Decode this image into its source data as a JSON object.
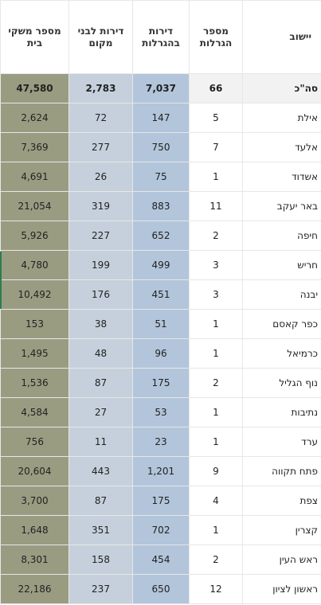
{
  "headers": {
    "settlement": "יישוב",
    "lotteries": "מספר הגרלות",
    "apartments": "דירות בהגרלות",
    "local_apartments": "דירות לבני מקום",
    "households": "מספר משקי בית"
  },
  "total": {
    "settlement": "סה\"כ",
    "lotteries": "66",
    "apartments": "7,037",
    "local_apartments": "2,783",
    "households": "47,580"
  },
  "rows": [
    {
      "settlement": "אילת",
      "lotteries": "5",
      "apartments": "147",
      "local_apartments": "72",
      "households": "2,624"
    },
    {
      "settlement": "אלעד",
      "lotteries": "7",
      "apartments": "750",
      "local_apartments": "277",
      "households": "7,369"
    },
    {
      "settlement": "אשדוד",
      "lotteries": "1",
      "apartments": "75",
      "local_apartments": "26",
      "households": "4,691"
    },
    {
      "settlement": "באר יעקב",
      "lotteries": "11",
      "apartments": "883",
      "local_apartments": "319",
      "households": "21,054"
    },
    {
      "settlement": "חיפה",
      "lotteries": "2",
      "apartments": "652",
      "local_apartments": "227",
      "households": "5,926"
    },
    {
      "settlement": "חריש",
      "lotteries": "3",
      "apartments": "499",
      "local_apartments": "199",
      "households": "4,780"
    },
    {
      "settlement": "יבנה",
      "lotteries": "3",
      "apartments": "451",
      "local_apartments": "176",
      "households": "10,492"
    },
    {
      "settlement": "כפר קאסם",
      "lotteries": "1",
      "apartments": "51",
      "local_apartments": "38",
      "households": "153"
    },
    {
      "settlement": "כרמיאל",
      "lotteries": "1",
      "apartments": "96",
      "local_apartments": "48",
      "households": "1,495"
    },
    {
      "settlement": "נוף הגליל",
      "lotteries": "2",
      "apartments": "175",
      "local_apartments": "87",
      "households": "1,536"
    },
    {
      "settlement": "נתיבות",
      "lotteries": "1",
      "apartments": "53",
      "local_apartments": "27",
      "households": "4,584"
    },
    {
      "settlement": "ערד",
      "lotteries": "1",
      "apartments": "23",
      "local_apartments": "11",
      "households": "756"
    },
    {
      "settlement": "פתח תקווה",
      "lotteries": "9",
      "apartments": "1,201",
      "local_apartments": "443",
      "households": "20,604"
    },
    {
      "settlement": "צפת",
      "lotteries": "4",
      "apartments": "175",
      "local_apartments": "87",
      "households": "3,700"
    },
    {
      "settlement": "קצרין",
      "lotteries": "1",
      "apartments": "702",
      "local_apartments": "351",
      "households": "1,648"
    },
    {
      "settlement": "ראש העין",
      "lotteries": "2",
      "apartments": "454",
      "local_apartments": "158",
      "households": "8,301"
    },
    {
      "settlement": "ראשון לציון",
      "lotteries": "12",
      "apartments": "650",
      "local_apartments": "237",
      "households": "22,186"
    }
  ],
  "colors": {
    "apartments_col": "#b2c5db",
    "local_col": "#c5d0dc",
    "households_col": "#9a9c82"
  }
}
